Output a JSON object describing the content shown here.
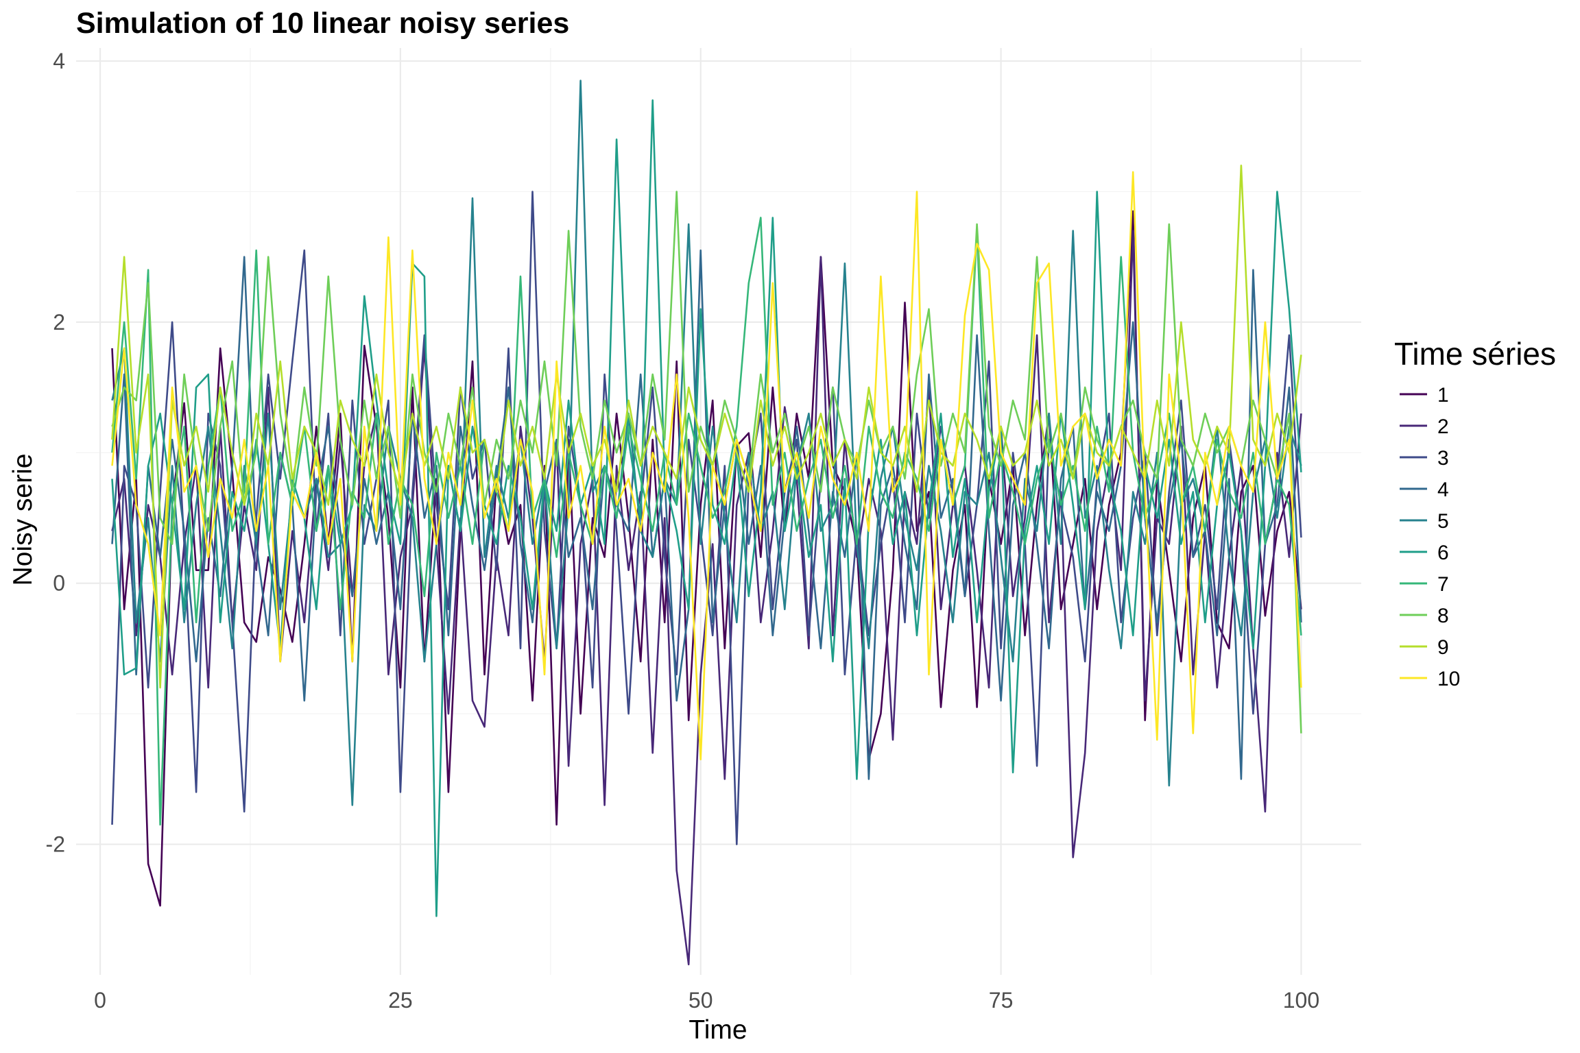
{
  "chart_data": {
    "type": "line",
    "title": "Simulation of 10 linear noisy series",
    "xlabel": "Time",
    "ylabel": "Noisy serie",
    "xlim": [
      -2,
      105
    ],
    "ylim": [
      -3.0,
      4.1
    ],
    "x_ticks": [
      "0",
      "25",
      "50",
      "75",
      "100"
    ],
    "x_tick_values": [
      0,
      25,
      50,
      75,
      100
    ],
    "y_ticks": [
      "-2",
      "0",
      "2",
      "4"
    ],
    "y_tick_values": [
      -2,
      0,
      2,
      4
    ],
    "grid": true,
    "legend": {
      "title": "Time séries",
      "position": "right"
    },
    "x": [
      1,
      2,
      3,
      4,
      5,
      6,
      7,
      8,
      9,
      10,
      11,
      12,
      13,
      14,
      15,
      16,
      17,
      18,
      19,
      20,
      21,
      22,
      23,
      24,
      25,
      26,
      27,
      28,
      29,
      30,
      31,
      32,
      33,
      34,
      35,
      36,
      37,
      38,
      39,
      40,
      41,
      42,
      43,
      44,
      45,
      46,
      47,
      48,
      49,
      50,
      51,
      52,
      53,
      54,
      55,
      56,
      57,
      58,
      59,
      60,
      61,
      62,
      63,
      64,
      65,
      66,
      67,
      68,
      69,
      70,
      71,
      72,
      73,
      74,
      75,
      76,
      77,
      78,
      79,
      80,
      81,
      82,
      83,
      84,
      85,
      86,
      87,
      88,
      89,
      90,
      91,
      92,
      93,
      94,
      95,
      96,
      97,
      98,
      99,
      100
    ],
    "series": [
      {
        "name": "1",
        "color": "#440154",
        "values": [
          1.8,
          -0.2,
          0.8,
          -2.15,
          -2.47,
          0.6,
          1.38,
          0.1,
          0.1,
          1.8,
          0.85,
          -0.3,
          -0.45,
          0.2,
          -0.05,
          -0.45,
          0.3,
          1.2,
          0.3,
          1.3,
          -0.6,
          1.82,
          1.2,
          0.5,
          -0.8,
          1.5,
          -0.6,
          0.8,
          -1.6,
          0.4,
          1.7,
          -0.7,
          0.8,
          0.3,
          0.6,
          -0.9,
          0.9,
          -1.85,
          1.1,
          -1.0,
          0.5,
          0.2,
          1.3,
          0.5,
          -0.6,
          1.1,
          -0.3,
          1.7,
          -1.05,
          0.6,
          1.4,
          -0.5,
          1.05,
          1.15,
          0.2,
          1.5,
          0.4,
          1.3,
          0.8,
          2.5,
          0.9,
          0.7,
          0.3,
          -1.35,
          -1.0,
          0.1,
          2.15,
          0.4,
          0.7,
          -0.95,
          0.1,
          0.6,
          -0.95,
          0.8,
          0.3,
          0.9,
          -0.4,
          0.6,
          1.3,
          -0.2,
          0.3,
          0.8,
          -0.2,
          0.6,
          1.0,
          2.85,
          -1.05,
          0.8,
          0.1,
          -0.6,
          0.5,
          0.9,
          -0.3,
          -0.5,
          0.7,
          0.9,
          -0.25,
          0.4,
          0.7,
          -0.2
        ]
      },
      {
        "name": "2",
        "color": "#482878",
        "values": [
          0.4,
          0.8,
          -0.4,
          0.6,
          0.2,
          -0.7,
          0.3,
          0.9,
          -0.8,
          1.2,
          -0.3,
          0.6,
          0.1,
          1.5,
          -0.6,
          0.4,
          -0.3,
          0.8,
          0.1,
          1.1,
          -0.1,
          0.9,
          1.3,
          -0.7,
          0.2,
          0.6,
          1.8,
          0.3,
          -1.0,
          0.5,
          -0.9,
          -1.1,
          0.2,
          -0.4,
          1.2,
          0.5,
          -0.6,
          1.1,
          -1.4,
          0.3,
          0.8,
          -1.7,
          0.9,
          0.1,
          0.7,
          -1.3,
          0.5,
          -2.2,
          -2.92,
          -0.7,
          0.3,
          -1.5,
          0.6,
          1.0,
          -0.3,
          0.4,
          1.35,
          0.8,
          -0.5,
          2.5,
          -0.4,
          1.1,
          0.2,
          0.8,
          0.4,
          -1.2,
          0.7,
          0.3,
          1.5,
          -0.2,
          0.6,
          0.9,
          0.1,
          -0.8,
          1.2,
          -0.1,
          0.5,
          1.9,
          -0.3,
          0.7,
          -2.1,
          -1.3,
          0.4,
          0.9,
          0.1,
          2.7,
          -0.9,
          0.5,
          0.3,
          1.2,
          -0.7,
          0.4,
          -0.8,
          0.2,
          0.9,
          -0.5,
          -1.75,
          1.0,
          0.2,
          1.3
        ]
      },
      {
        "name": "3",
        "color": "#3e4a89",
        "values": [
          -1.85,
          0.9,
          0.6,
          -0.8,
          0.7,
          2.0,
          0.3,
          -1.6,
          1.3,
          0.9,
          -0.3,
          -1.75,
          0.5,
          1.6,
          0.8,
          1.7,
          2.55,
          0.4,
          1.3,
          -0.4,
          1.4,
          0.3,
          0.8,
          1.4,
          -1.6,
          0.7,
          1.9,
          0.6,
          -0.2,
          1.5,
          0.8,
          1.1,
          0.1,
          1.8,
          -0.5,
          3.0,
          0.4,
          -0.5,
          1.2,
          0.6,
          -0.8,
          1.6,
          0.4,
          -1.0,
          0.6,
          1.5,
          0.2,
          -0.7,
          1.1,
          0.4,
          -0.4,
          0.9,
          -2.0,
          0.8,
          1.3,
          -0.2,
          0.7,
          1.1,
          -0.4,
          0.8,
          1.5,
          -0.7,
          0.4,
          -0.4,
          0.3,
          0.8,
          -0.3,
          1.3,
          0.5,
          1.2,
          0.7,
          -0.1,
          0.6,
          1.7,
          -0.5,
          1.0,
          0.3,
          -1.4,
          1.1,
          0.6,
          0.2,
          -0.6,
          0.8,
          1.3,
          -0.3,
          0.5,
          1.0,
          -0.4,
          0.7,
          1.4,
          0.2,
          0.6,
          -0.2,
          1.1,
          0.4,
          -1.0,
          0.3,
          0.8,
          1.9,
          0.35
        ]
      },
      {
        "name": "4",
        "color": "#31688e",
        "values": [
          0.3,
          1.6,
          -0.7,
          0.9,
          0.2,
          1.1,
          0.4,
          -0.6,
          0.5,
          -0.1,
          0.9,
          2.5,
          0.3,
          -0.4,
          1.0,
          0.6,
          -0.9,
          0.7,
          1.2,
          0.4,
          -0.1,
          0.8,
          0.3,
          0.7,
          -0.2,
          1.3,
          0.5,
          0.9,
          -0.4,
          1.2,
          0.6,
          0.1,
          0.8,
          1.5,
          0.3,
          -0.3,
          0.7,
          1.1,
          0.2,
          0.5,
          -0.2,
          0.9,
          0.6,
          0.4,
          1.6,
          0.2,
          0.8,
          -0.9,
          -0.2,
          2.55,
          -0.3,
          0.6,
          1.1,
          0.3,
          0.9,
          -0.4,
          0.5,
          1.2,
          0.4,
          -0.5,
          0.7,
          0.2,
          1.0,
          -1.5,
          0.6,
          0.9,
          0.3,
          -0.2,
          1.6,
          0.5,
          0.8,
          -0.1,
          1.9,
          0.4,
          -0.9,
          0.6,
          1.0,
          0.3,
          -0.5,
          0.8,
          1.2,
          -0.2,
          0.7,
          0.4,
          0.9,
          2.0,
          0.5,
          -0.3,
          0.6,
          1.1,
          0.2,
          0.4,
          -0.4,
          0.8,
          -1.5,
          2.4,
          0.3,
          0.6,
          1.5,
          -0.3
        ]
      },
      {
        "name": "5",
        "color": "#26828e",
        "values": [
          1.4,
          1.8,
          -0.3,
          0.5,
          -0.6,
          0.9,
          -0.3,
          0.6,
          1.2,
          0.4,
          -0.5,
          0.9,
          0.3,
          1.3,
          -0.2,
          0.7,
          0.5,
          0.8,
          0.2,
          0.3,
          -1.7,
          0.6,
          0.4,
          1.2,
          0.8,
          0.5,
          -0.6,
          0.3,
          0.9,
          0.4,
          2.95,
          0.2,
          0.9,
          0.5,
          1.1,
          0.3,
          0.8,
          -0.5,
          0.6,
          3.85,
          0.7,
          0.9,
          0.5,
          1.3,
          0.4,
          0.2,
          0.8,
          0.6,
          2.75,
          0.3,
          1.2,
          0.5,
          -0.3,
          1.0,
          0.4,
          0.7,
          -0.2,
          0.9,
          1.3,
          0.4,
          0.6,
          2.45,
          0.3,
          -0.5,
          0.8,
          1.2,
          0.5,
          0.1,
          0.9,
          0.4,
          -0.3,
          0.7,
          0.6,
          1.0,
          0.2,
          -0.6,
          0.8,
          0.4,
          1.3,
          0.3,
          2.7,
          0.5,
          0.9,
          0.1,
          -0.5,
          0.7,
          0.3,
          1.0,
          -1.55,
          0.6,
          0.8,
          0.4,
          1.2,
          0.2,
          -0.4,
          0.7,
          1.1,
          0.5,
          1.2,
          0.9
        ]
      },
      {
        "name": "6",
        "color": "#1f9e89",
        "values": [
          0.8,
          -0.7,
          -0.65,
          0.9,
          1.3,
          0.6,
          -0.2,
          1.5,
          1.6,
          -0.3,
          0.7,
          0.4,
          1.1,
          0.3,
          -0.5,
          0.8,
          0.5,
          -0.2,
          0.9,
          0.3,
          0.6,
          2.2,
          1.4,
          0.7,
          0.3,
          2.45,
          2.35,
          -2.55,
          0.9,
          0.4,
          1.2,
          0.6,
          0.3,
          0.9,
          0.5,
          -0.2,
          0.8,
          0.4,
          1.4,
          0.6,
          0.9,
          0.3,
          3.4,
          1.1,
          0.5,
          3.7,
          0.8,
          0.4,
          -0.2,
          2.1,
          0.6,
          0.3,
          1.0,
          -0.1,
          0.7,
          2.8,
          0.4,
          0.9,
          0.2,
          0.6,
          -0.6,
          0.8,
          -1.5,
          0.5,
          1.1,
          0.3,
          0.7,
          -0.4,
          0.6,
          1.3,
          0.2,
          0.8,
          -0.3,
          0.7,
          1.2,
          -1.45,
          0.4,
          0.9,
          0.3,
          1.3,
          0.6,
          -0.2,
          3.0,
          0.8,
          0.4,
          -0.4,
          0.9,
          0.5,
          1.1,
          0.3,
          0.7,
          -0.3,
          0.6,
          1.0,
          0.4,
          -0.5,
          0.9,
          3.0,
          2.1,
          0.85
        ]
      },
      {
        "name": "7",
        "color": "#35b779",
        "values": [
          1.0,
          2.0,
          0.8,
          2.4,
          -1.85,
          0.6,
          1.2,
          -0.3,
          0.9,
          1.5,
          0.4,
          0.7,
          2.55,
          0.3,
          1.0,
          0.6,
          1.2,
          0.4,
          0.9,
          -0.2,
          0.7,
          0.5,
          1.3,
          0.3,
          0.8,
          0.6,
          -0.1,
          1.0,
          0.5,
          0.9,
          0.3,
          1.1,
          0.7,
          0.4,
          2.35,
          0.5,
          0.8,
          0.2,
          1.0,
          0.6,
          0.3,
          0.9,
          0.5,
          1.2,
          0.8,
          0.4,
          1.0,
          0.6,
          1.3,
          0.9,
          0.5,
          0.7,
          1.2,
          2.3,
          2.8,
          0.6,
          1.0,
          0.4,
          0.8,
          1.1,
          0.5,
          0.9,
          0.3,
          1.2,
          0.7,
          0.5,
          1.0,
          0.8,
          0.4,
          1.1,
          0.6,
          0.9,
          2.7,
          0.5,
          1.0,
          0.7,
          0.3,
          0.8,
          1.1,
          0.6,
          0.9,
          0.4,
          1.2,
          0.7,
          2.5,
          1.0,
          0.5,
          0.8,
          1.3,
          0.6,
          0.9,
          0.4,
          1.1,
          0.7,
          0.5,
          1.0,
          0.3,
          0.8,
          0.6,
          -0.4
        ]
      },
      {
        "name": "8",
        "color": "#6ece58",
        "values": [
          1.2,
          1.5,
          1.4,
          2.3,
          0.5,
          0.3,
          1.6,
          0.9,
          0.4,
          1.2,
          1.7,
          0.6,
          1.0,
          2.5,
          1.3,
          0.7,
          1.5,
          0.9,
          2.35,
          1.1,
          0.6,
          1.4,
          0.8,
          1.2,
          0.5,
          1.6,
          1.0,
          0.7,
          1.3,
          0.9,
          1.5,
          0.6,
          1.1,
          0.8,
          1.4,
          1.0,
          1.7,
          0.9,
          2.7,
          1.2,
          0.8,
          1.4,
          1.0,
          1.3,
          0.9,
          1.6,
          1.1,
          3.0,
          0.7,
          1.2,
          0.9,
          1.4,
          1.1,
          0.8,
          1.6,
          1.0,
          1.3,
          0.9,
          1.2,
          0.7,
          1.5,
          1.1,
          0.9,
          1.4,
          1.0,
          1.2,
          0.8,
          1.6,
          2.1,
          0.9,
          1.3,
          1.0,
          2.75,
          1.2,
          0.9,
          1.4,
          1.1,
          2.5,
          1.0,
          1.3,
          0.8,
          1.5,
          1.1,
          0.9,
          1.2,
          1.4,
          1.0,
          0.8,
          2.75,
          1.1,
          0.9,
          1.3,
          1.0,
          1.2,
          0.9,
          1.4,
          1.1,
          0.8,
          1.3,
          -1.15
        ]
      },
      {
        "name": "9",
        "color": "#b5de2b",
        "values": [
          1.1,
          2.5,
          1.0,
          1.6,
          -0.8,
          1.4,
          0.9,
          1.2,
          0.7,
          1.5,
          1.0,
          0.6,
          1.3,
          0.9,
          1.7,
          0.8,
          1.2,
          1.0,
          0.6,
          1.4,
          1.1,
          0.9,
          1.6,
          1.0,
          0.7,
          1.3,
          0.9,
          1.2,
          0.8,
          1.5,
          1.0,
          1.1,
          0.7,
          1.4,
          0.9,
          1.2,
          0.8,
          1.6,
          1.0,
          1.3,
          0.9,
          1.1,
          0.7,
          1.4,
          0.9,
          1.2,
          1.0,
          0.8,
          1.5,
          1.1,
          0.9,
          1.3,
          1.0,
          0.7,
          1.4,
          0.9,
          1.2,
          0.8,
          1.0,
          1.3,
          0.9,
          1.1,
          0.8,
          1.5,
          1.0,
          0.9,
          1.2,
          0.7,
          1.4,
          1.0,
          0.9,
          1.3,
          1.1,
          0.8,
          1.2,
          0.9,
          1.0,
          1.4,
          0.9,
          1.1,
          0.8,
          1.3,
          1.0,
          0.9,
          1.2,
          1.0,
          0.8,
          1.4,
          0.9,
          2.0,
          1.1,
          0.9,
          1.2,
          1.0,
          3.2,
          1.1,
          0.9,
          1.3,
          1.0,
          1.75
        ]
      },
      {
        "name": "10",
        "color": "#fde725",
        "values": [
          0.9,
          1.8,
          0.6,
          0.3,
          -0.4,
          1.5,
          0.7,
          0.9,
          0.2,
          0.8,
          0.5,
          1.1,
          0.4,
          0.9,
          -0.6,
          0.7,
          0.5,
          1.0,
          0.3,
          0.8,
          -0.6,
          1.2,
          0.4,
          2.65,
          0.6,
          2.55,
          0.8,
          0.3,
          1.0,
          0.6,
          1.4,
          0.5,
          0.8,
          0.4,
          1.1,
          0.7,
          -0.7,
          1.7,
          0.5,
          0.9,
          0.3,
          1.2,
          0.6,
          0.8,
          0.4,
          1.0,
          0.7,
          1.6,
          0.5,
          -1.35,
          0.9,
          0.6,
          1.1,
          0.8,
          0.4,
          2.3,
          0.7,
          1.0,
          0.5,
          1.2,
          0.8,
          0.6,
          1.0,
          0.4,
          2.35,
          0.7,
          0.9,
          3.0,
          -0.7,
          1.1,
          0.6,
          2.05,
          2.6,
          2.4,
          1.0,
          0.8,
          0.6,
          2.3,
          2.45,
          0.9,
          1.2,
          1.3,
          0.8,
          1.1,
          0.9,
          3.15,
          0.7,
          -1.2,
          1.6,
          0.8,
          -1.15,
          1.0,
          0.6,
          1.2,
          0.9,
          0.7,
          2.0,
          0.8,
          1.1,
          -0.8
        ]
      }
    ]
  }
}
